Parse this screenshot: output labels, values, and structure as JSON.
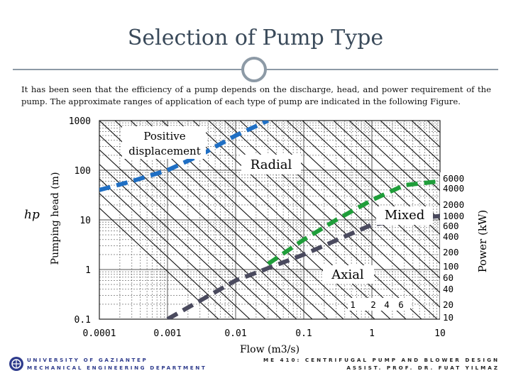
{
  "slide": {
    "title": "Selection of Pump Type",
    "intro": "It has been seen that the efficiency of a pump depends on the discharge, head, and power requirement of the pump. The approximate ranges of application of each type of pump are indicated in the following Figure."
  },
  "chart_data": {
    "type": "line",
    "xlabel": "Flow (m3/s)",
    "ylabel": "Pumping head (m)",
    "y_symbol": "hp",
    "y2label": "Power (kW)",
    "x_scale": "log",
    "y_scale": "log",
    "xlim": [
      0.0001,
      10
    ],
    "ylim": [
      0.1,
      1000
    ],
    "x_ticks": [
      "0.0001",
      "0.001",
      "0.01",
      "0.1",
      "1",
      "10"
    ],
    "y_ticks": [
      "1000",
      "100",
      "10",
      "1",
      "0.1"
    ],
    "power_labels": [
      "6000",
      "4000",
      "2000",
      "1000",
      "600",
      "400",
      "200",
      "100",
      "60",
      "40",
      "20",
      "10"
    ],
    "power_labels_bottom": [
      "1",
      "2",
      "4",
      "6"
    ],
    "grid": true,
    "regions": [
      {
        "name": "Positive displacement"
      },
      {
        "name": "Radial"
      },
      {
        "name": "Mixed"
      },
      {
        "name": "Axial"
      }
    ],
    "series": [
      {
        "color": "#1f6fc4",
        "x": [
          0.0001,
          0.0003,
          0.001,
          0.003,
          0.01,
          0.03
        ],
        "y": [
          40,
          60,
          100,
          200,
          500,
          1000
        ]
      },
      {
        "color": "#1f9e3a",
        "x": [
          0.03,
          0.1,
          0.3,
          1,
          3,
          10
        ],
        "y": [
          1.3,
          4,
          10,
          25,
          50,
          60
        ]
      },
      {
        "color": "#4a4a5e",
        "x": [
          0.001,
          0.01,
          0.1,
          1,
          3,
          10
        ],
        "y": [
          0.1,
          0.6,
          2,
          8,
          10,
          12
        ]
      }
    ]
  },
  "footer": {
    "left_line1": "UNIVERSITY OF GAZIANTEP",
    "left_line2": "MECHANICAL ENGINEERING DEPARTMENT",
    "right_line1": "ME 410: CENTRIFUGAL PUMP AND BLOWER DESIGN",
    "right_line2": "ASSIST. PROF. DR. FUAT YILMAZ"
  }
}
